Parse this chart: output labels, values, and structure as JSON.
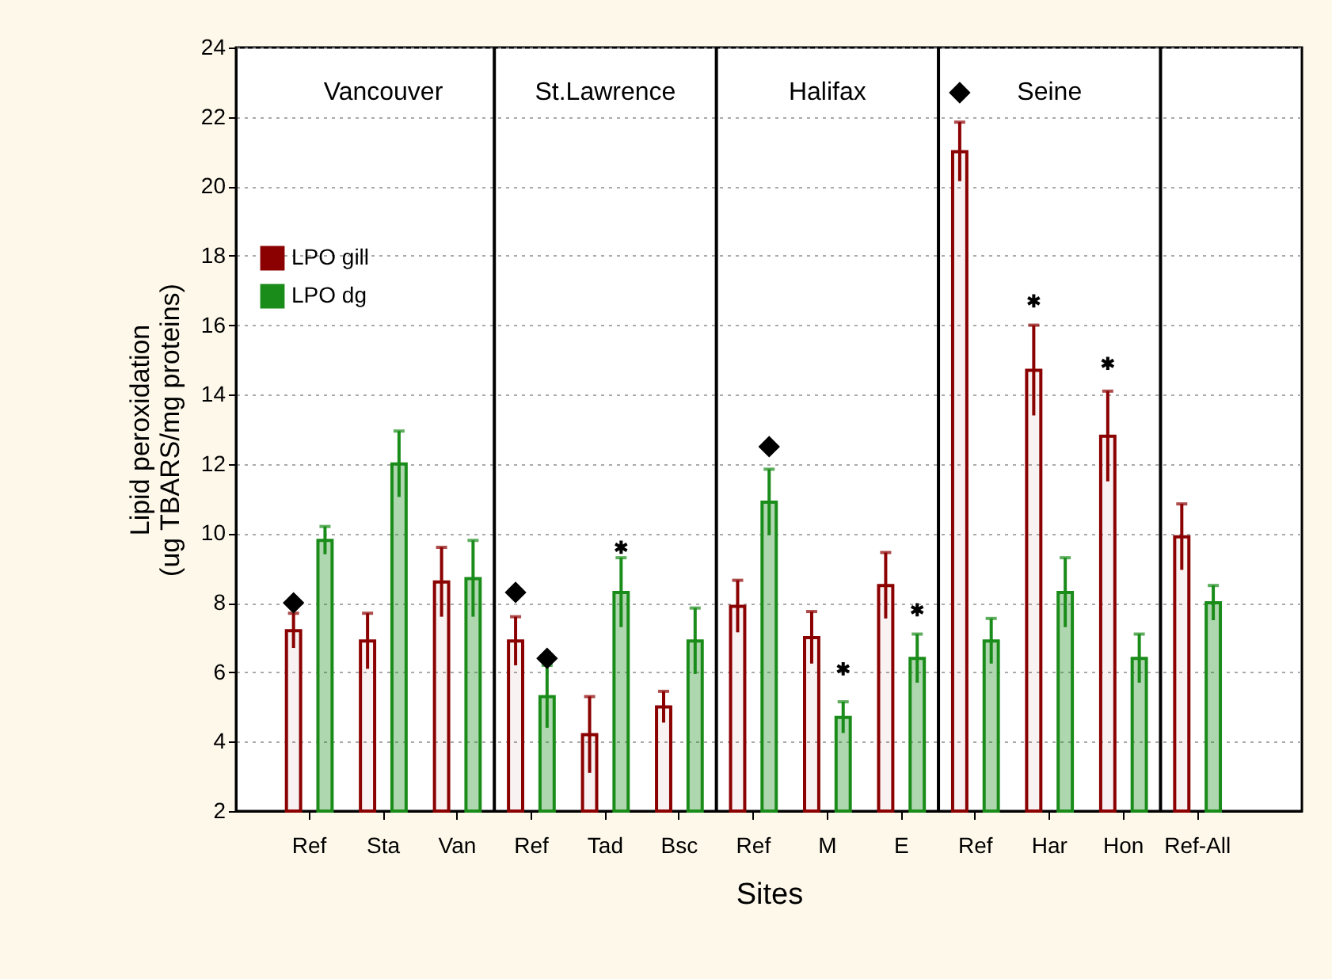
{
  "chart_data": {
    "type": "bar",
    "xlabel": "Sites",
    "ylabel": "Lipid peroxidation\n(ug TBARS/mg proteins)",
    "categories": [
      "Ref",
      "Sta",
      "Van",
      "Ref",
      "Tad",
      "Bsc",
      "Ref",
      "M",
      "E",
      "Ref",
      "Har",
      "Hon",
      "Ref-All"
    ],
    "series": [
      {
        "name": "LPO gill",
        "color": "#8b0000",
        "values": [
          7.2,
          6.9,
          8.6,
          6.9,
          4.2,
          5.0,
          7.9,
          7.0,
          8.5,
          21.0,
          14.7,
          12.8,
          9.9
        ],
        "errors": [
          0.5,
          0.8,
          1.0,
          0.7,
          1.1,
          0.45,
          0.75,
          0.75,
          0.95,
          0.85,
          1.3,
          1.3,
          0.95
        ]
      },
      {
        "name": "LPO dg",
        "color": "#1a8c1a",
        "values": [
          9.8,
          12.0,
          8.7,
          5.3,
          8.3,
          6.9,
          10.9,
          4.7,
          6.4,
          6.9,
          8.3,
          6.4,
          8.0
        ],
        "errors": [
          0.4,
          0.95,
          1.1,
          0.9,
          1.0,
          0.95,
          0.95,
          0.45,
          0.7,
          0.65,
          1.0,
          0.7,
          0.5
        ]
      },
      {
        "type": "scatter",
        "color": "#000000",
        "marker": "diamond",
        "values": [
          8.0,
          null,
          null,
          8.3,
          null,
          null,
          null,
          null,
          null,
          22.7,
          null,
          null,
          null
        ]
      },
      {
        "type": "scatter",
        "color": "#000000",
        "marker": "diamond",
        "values": [
          null,
          null,
          null,
          6.4,
          null,
          null,
          12.5,
          null,
          null,
          null,
          null,
          null,
          null
        ]
      },
      {
        "type": "scatter",
        "color": "#000000",
        "marker": "cross",
        "values": [
          null,
          null,
          null,
          null,
          null,
          null,
          null,
          null,
          null,
          null,
          16.7,
          14.9,
          null
        ]
      },
      {
        "type": "scatter",
        "color": "#000000",
        "marker": "cross",
        "values": [
          null,
          null,
          null,
          null,
          9.6,
          null,
          null,
          6.1,
          7.8,
          null,
          null,
          null,
          null
        ]
      }
    ],
    "ylim": [
      2,
      24
    ],
    "yticks": [
      2,
      4,
      6,
      8,
      10,
      12,
      14,
      16,
      18,
      20,
      22,
      24
    ],
    "grid": "y",
    "legend": "top left",
    "annotations": [
      "Vancouver",
      "St.Lawrence",
      "Halifax",
      "Seine"
    ]
  }
}
